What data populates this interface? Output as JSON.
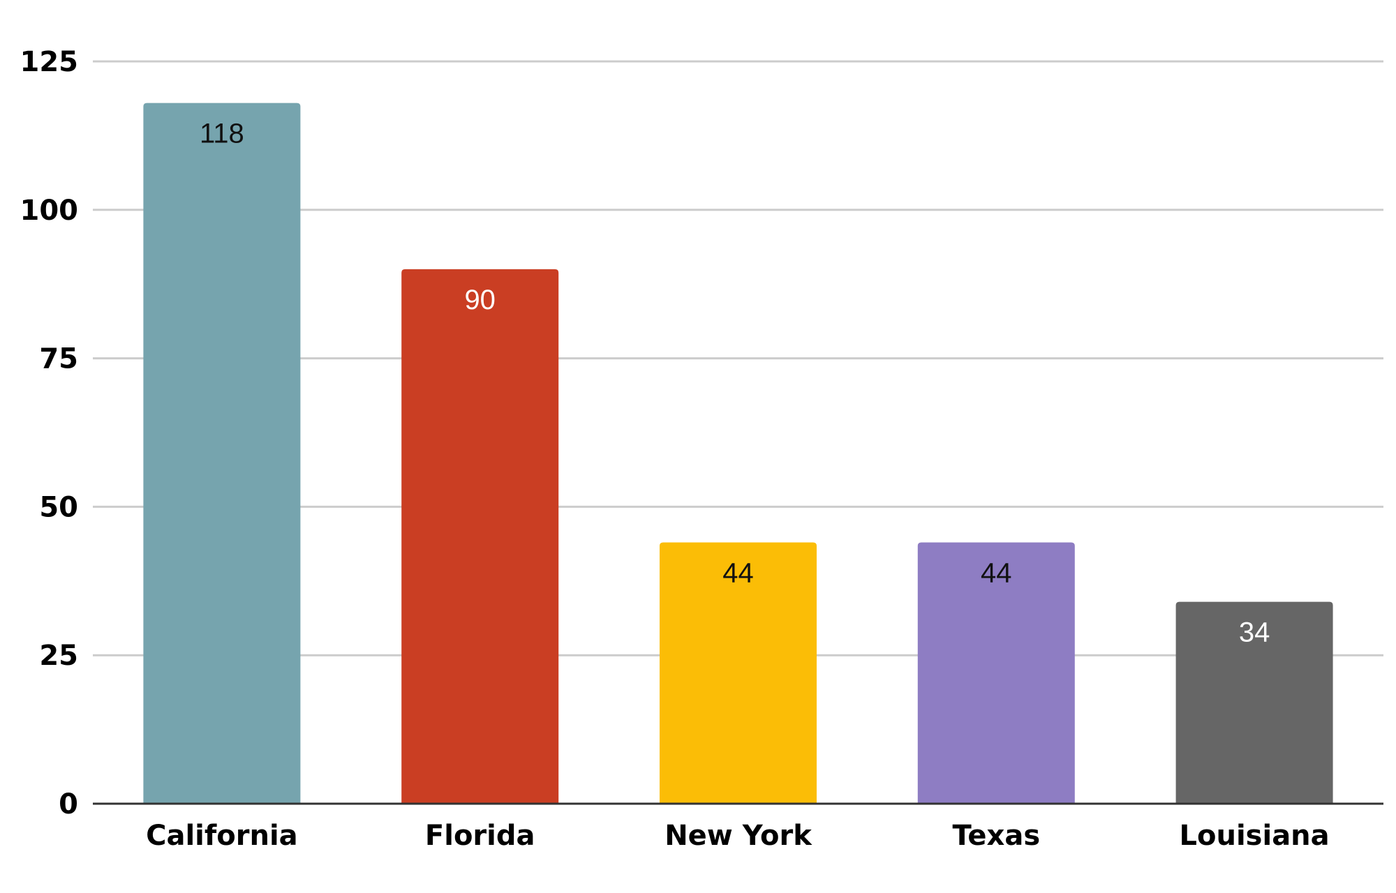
{
  "chart_data": {
    "type": "bar",
    "title": "",
    "xlabel": "",
    "ylabel": "",
    "categories": [
      "California",
      "Florida",
      "New York",
      "Texas",
      "Louisiana"
    ],
    "values": [
      118,
      90,
      44,
      44,
      34
    ],
    "data_labels": [
      "118",
      "90",
      "44",
      "44",
      "34"
    ],
    "bar_colors": [
      "#76a4ae",
      "#ca3e23",
      "#fbbd06",
      "#8e7dc3",
      "#666666"
    ],
    "label_colors": [
      "#111111",
      "#ffffff",
      "#111111",
      "#111111",
      "#ffffff"
    ],
    "ylim": [
      0,
      125
    ],
    "yticks": [
      0,
      25,
      50,
      75,
      100,
      125
    ],
    "ytick_labels": [
      "0",
      "25",
      "50",
      "75",
      "100",
      "125"
    ],
    "grid": true,
    "legend": "none"
  }
}
